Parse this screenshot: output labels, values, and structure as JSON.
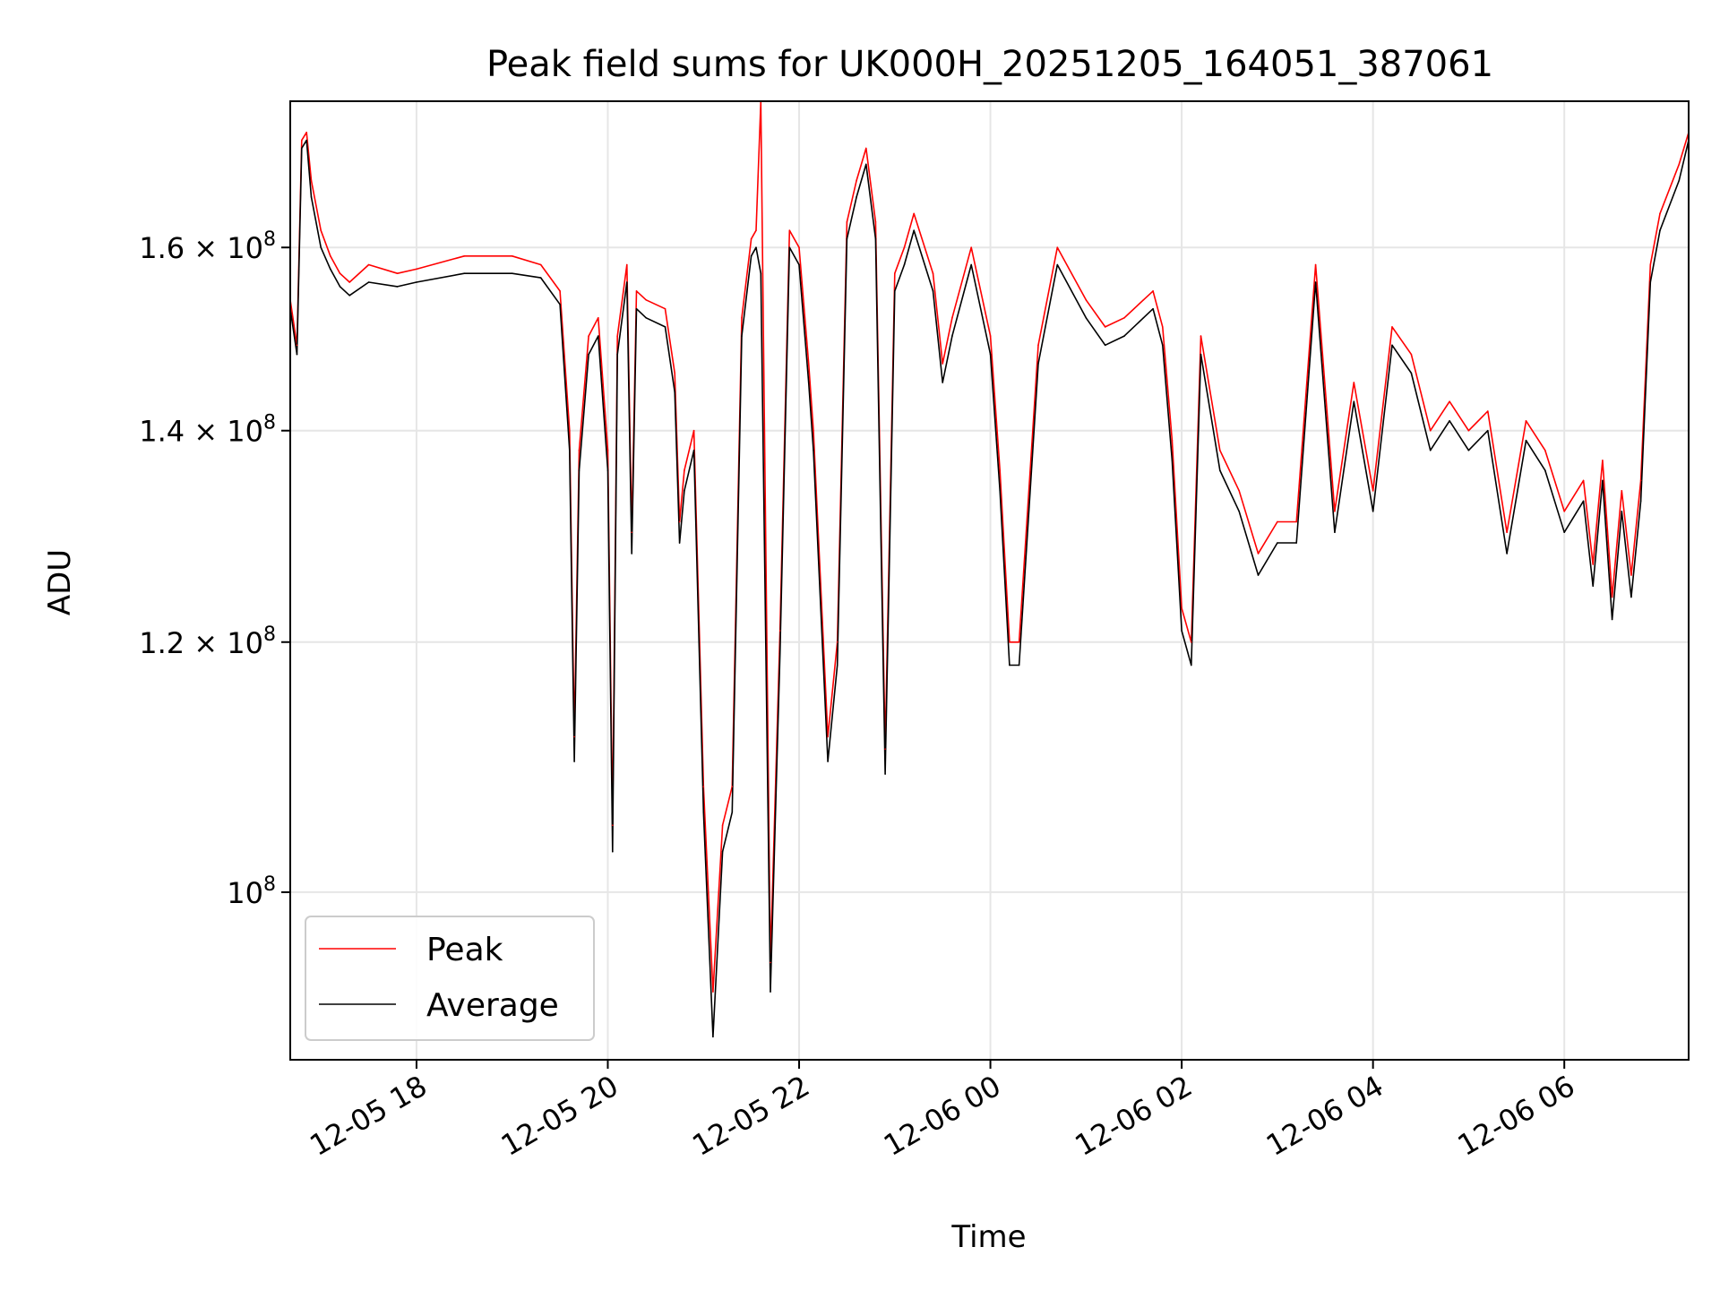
{
  "chart_data": {
    "type": "line",
    "title": "Peak field sums for UK000H_20251205_164051_387061",
    "xlabel": "Time",
    "ylabel": "ADU",
    "yscale": "log",
    "ylim": [
      88500000,
      178000000
    ],
    "xlim_hours": [
      16.68,
      31.3
    ],
    "grid": true,
    "legend_position": "lower-left",
    "colors": {
      "peak": "#ff0000",
      "average": "#000000",
      "grid": "#e6e6e6"
    },
    "x_ticks": [
      {
        "hour": 18,
        "label": "12-05 18"
      },
      {
        "hour": 20,
        "label": "12-05 20"
      },
      {
        "hour": 22,
        "label": "12-05 22"
      },
      {
        "hour": 24,
        "label": "12-06 00"
      },
      {
        "hour": 26,
        "label": "12-06 02"
      },
      {
        "hour": 28,
        "label": "12-06 04"
      },
      {
        "hour": 30,
        "label": "12-06 06"
      }
    ],
    "y_ticks": [
      {
        "value": 100000000,
        "mantissa": "",
        "label": "10",
        "exp": "8"
      },
      {
        "value": 120000000,
        "mantissa": "1.2",
        "label": "× 10",
        "exp": "8"
      },
      {
        "value": 140000000,
        "mantissa": "1.4",
        "label": "× 10",
        "exp": "8"
      },
      {
        "value": 160000000,
        "mantissa": "1.6",
        "label": "× 10",
        "exp": "8"
      }
    ],
    "series": [
      {
        "name": "Peak",
        "x": [
          16.68,
          16.75,
          16.8,
          16.85,
          16.9,
          17.0,
          17.1,
          17.2,
          17.3,
          17.5,
          17.8,
          18.0,
          18.5,
          19.0,
          19.3,
          19.5,
          19.6,
          19.65,
          19.7,
          19.8,
          19.9,
          20.0,
          20.05,
          20.1,
          20.2,
          20.25,
          20.3,
          20.4,
          20.6,
          20.7,
          20.75,
          20.8,
          20.9,
          21.0,
          21.1,
          21.2,
          21.3,
          21.4,
          21.5,
          21.55,
          21.6,
          21.7,
          21.8,
          21.9,
          22.0,
          22.1,
          22.15,
          22.3,
          22.4,
          22.5,
          22.6,
          22.7,
          22.8,
          22.9,
          23.0,
          23.1,
          23.2,
          23.4,
          23.5,
          23.6,
          23.8,
          24.0,
          24.1,
          24.2,
          24.3,
          24.5,
          24.7,
          25.0,
          25.2,
          25.4,
          25.6,
          25.7,
          25.8,
          25.9,
          26.0,
          26.1,
          26.2,
          26.4,
          26.6,
          26.8,
          27.0,
          27.2,
          27.4,
          27.6,
          27.8,
          28.0,
          28.2,
          28.4,
          28.6,
          28.8,
          29.0,
          29.2,
          29.4,
          29.6,
          29.8,
          30.0,
          30.2,
          30.3,
          30.4,
          30.5,
          30.6,
          30.7,
          30.8,
          30.9,
          31.0,
          31.2,
          31.3
        ],
        "values": [
          154000000,
          149000000,
          173000000,
          174000000,
          168000000,
          162000000,
          159000000,
          157000000,
          156000000,
          158000000,
          157000000,
          157500000,
          159000000,
          159000000,
          158000000,
          155000000,
          140000000,
          112000000,
          138000000,
          150000000,
          152000000,
          138000000,
          105000000,
          150000000,
          158000000,
          130000000,
          155000000,
          154000000,
          153000000,
          146000000,
          131000000,
          136000000,
          140000000,
          108000000,
          93000000,
          105000000,
          108000000,
          152000000,
          161000000,
          162000000,
          178000000,
          95000000,
          121000000,
          162000000,
          160000000,
          147000000,
          140000000,
          112000000,
          120000000,
          163000000,
          168000000,
          172000000,
          163000000,
          111000000,
          157000000,
          160000000,
          164000000,
          157000000,
          147000000,
          152000000,
          160000000,
          150000000,
          136000000,
          120000000,
          120000000,
          149000000,
          160000000,
          154000000,
          151000000,
          152000000,
          154000000,
          155000000,
          151000000,
          139000000,
          123000000,
          120000000,
          150000000,
          138000000,
          134000000,
          128000000,
          131000000,
          131000000,
          158000000,
          132000000,
          145000000,
          134000000,
          151000000,
          148000000,
          140000000,
          143000000,
          140000000,
          142000000,
          130000000,
          141000000,
          138000000,
          132000000,
          135000000,
          127000000,
          137000000,
          124000000,
          134000000,
          126000000,
          135000000,
          158000000,
          164000000,
          170000000,
          174000000
        ]
      },
      {
        "name": "Average",
        "x": [
          16.68,
          16.75,
          16.8,
          16.85,
          16.9,
          17.0,
          17.1,
          17.2,
          17.3,
          17.5,
          17.8,
          18.0,
          18.5,
          19.0,
          19.3,
          19.5,
          19.6,
          19.65,
          19.7,
          19.8,
          19.9,
          20.0,
          20.05,
          20.1,
          20.2,
          20.25,
          20.3,
          20.4,
          20.6,
          20.7,
          20.75,
          20.8,
          20.9,
          21.0,
          21.1,
          21.2,
          21.3,
          21.4,
          21.5,
          21.55,
          21.6,
          21.7,
          21.8,
          21.9,
          22.0,
          22.1,
          22.15,
          22.3,
          22.4,
          22.5,
          22.6,
          22.7,
          22.8,
          22.9,
          23.0,
          23.1,
          23.2,
          23.4,
          23.5,
          23.6,
          23.8,
          24.0,
          24.1,
          24.2,
          24.3,
          24.5,
          24.7,
          25.0,
          25.2,
          25.4,
          25.6,
          25.7,
          25.8,
          25.9,
          26.0,
          26.1,
          26.2,
          26.4,
          26.6,
          26.8,
          27.0,
          27.2,
          27.4,
          27.6,
          27.8,
          28.0,
          28.2,
          28.4,
          28.6,
          28.8,
          29.0,
          29.2,
          29.4,
          29.6,
          29.8,
          30.0,
          30.2,
          30.3,
          30.4,
          30.5,
          30.6,
          30.7,
          30.8,
          30.9,
          31.0,
          31.2,
          31.3
        ],
        "values": [
          153000000,
          148000000,
          172000000,
          173000000,
          166000000,
          160000000,
          157500000,
          155500000,
          154500000,
          156000000,
          155500000,
          156000000,
          157000000,
          157000000,
          156500000,
          153500000,
          138000000,
          110000000,
          136000000,
          148000000,
          150000000,
          136000000,
          103000000,
          148000000,
          156000000,
          128000000,
          153000000,
          152000000,
          151000000,
          144000000,
          129000000,
          134000000,
          138000000,
          106000000,
          90000000,
          103000000,
          106000000,
          150000000,
          159000000,
          160000000,
          157000000,
          93000000,
          119000000,
          160000000,
          158000000,
          145000000,
          138000000,
          110000000,
          118000000,
          161000000,
          166000000,
          170000000,
          161000000,
          109000000,
          155000000,
          158000000,
          162000000,
          155000000,
          145000000,
          150000000,
          158000000,
          148000000,
          134000000,
          118000000,
          118000000,
          147000000,
          158000000,
          152000000,
          149000000,
          150000000,
          152000000,
          153000000,
          149000000,
          137000000,
          121000000,
          118000000,
          148000000,
          136000000,
          132000000,
          126000000,
          129000000,
          129000000,
          156000000,
          130000000,
          143000000,
          132000000,
          149000000,
          146000000,
          138000000,
          141000000,
          138000000,
          140000000,
          128000000,
          139000000,
          136000000,
          130000000,
          133000000,
          125000000,
          135000000,
          122000000,
          132000000,
          124000000,
          133000000,
          156000000,
          162000000,
          168000000,
          173000000
        ]
      }
    ]
  }
}
